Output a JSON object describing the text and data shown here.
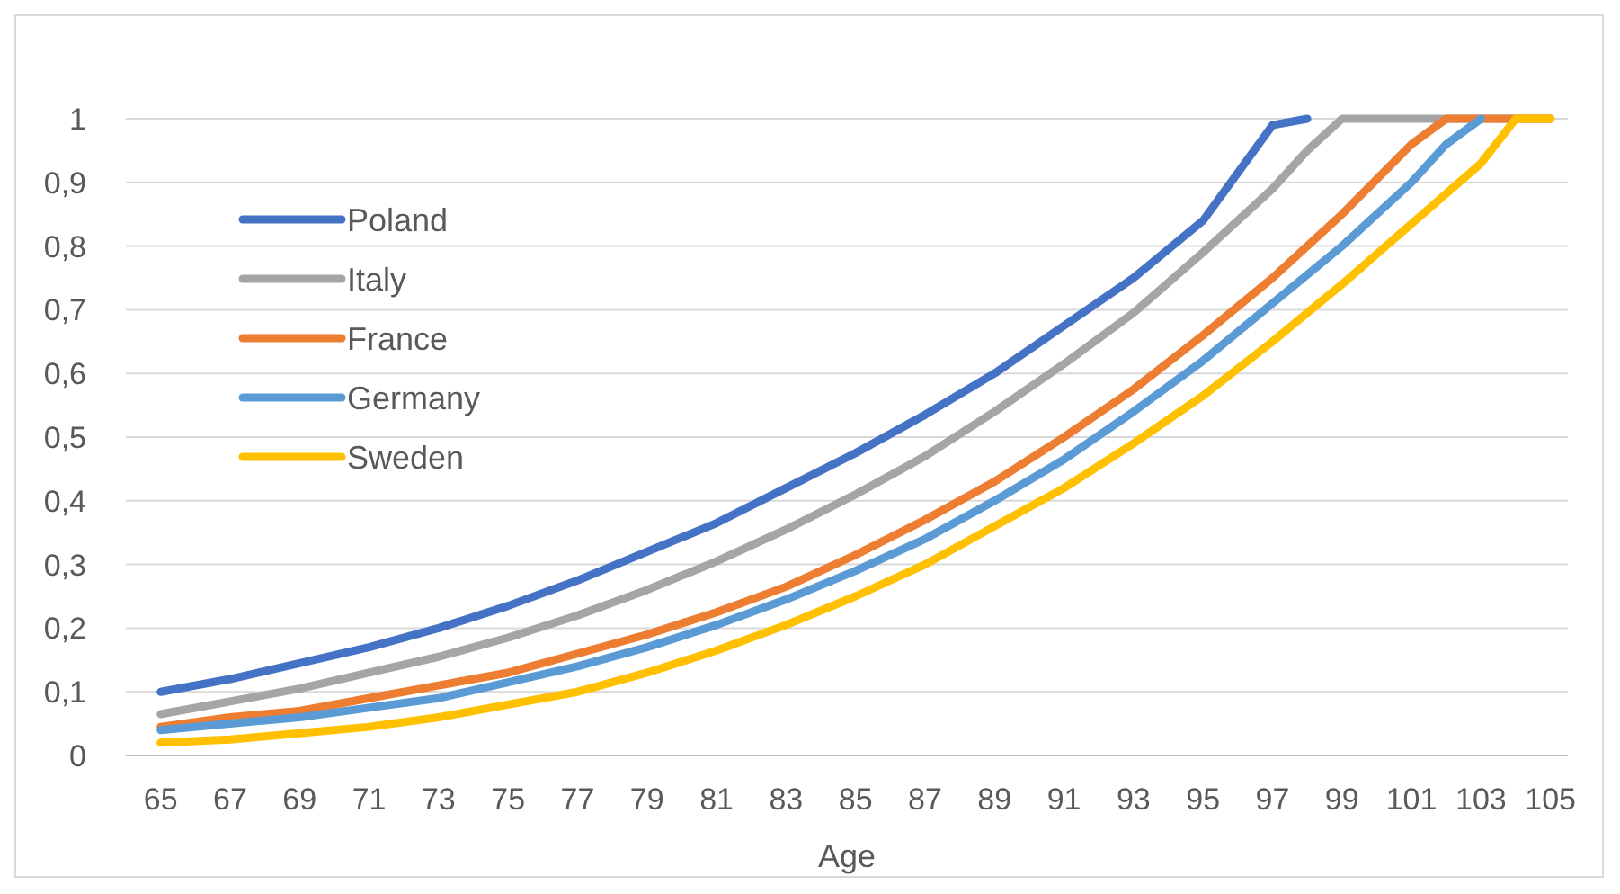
{
  "chart_data": {
    "type": "line",
    "xlabel": "Age",
    "xlim": [
      64,
      105.5
    ],
    "xticks": [
      65,
      67,
      69,
      71,
      73,
      75,
      77,
      79,
      81,
      83,
      85,
      87,
      89,
      91,
      93,
      95,
      97,
      99,
      101,
      103,
      105
    ],
    "ylim": [
      0,
      1
    ],
    "yticks": [
      {
        "value": 0,
        "label": "0"
      },
      {
        "value": 0.1,
        "label": "0,1"
      },
      {
        "value": 0.2,
        "label": "0,2"
      },
      {
        "value": 0.3,
        "label": "0,3"
      },
      {
        "value": 0.4,
        "label": "0,4"
      },
      {
        "value": 0.5,
        "label": "0,5"
      },
      {
        "value": 0.6,
        "label": "0,6"
      },
      {
        "value": 0.7,
        "label": "0,7"
      },
      {
        "value": 0.8,
        "label": "0,8"
      },
      {
        "value": 0.9,
        "label": "0,9"
      },
      {
        "value": 1,
        "label": "1"
      }
    ],
    "grid": "y",
    "legend": "top left",
    "marker": "none",
    "line_style": "solid",
    "series": [
      {
        "name": "Poland",
        "color": "#4472c4",
        "x": [
          65,
          67,
          69,
          71,
          73,
          75,
          77,
          79,
          81,
          83,
          85,
          87,
          89,
          91,
          93,
          95,
          97,
          98
        ],
        "values": [
          0.1,
          0.12,
          0.145,
          0.17,
          0.2,
          0.235,
          0.275,
          0.32,
          0.365,
          0.42,
          0.475,
          0.535,
          0.6,
          0.675,
          0.75,
          0.84,
          0.99,
          1
        ]
      },
      {
        "name": "Italy",
        "color": "#a5a5a5",
        "x": [
          65,
          67,
          69,
          71,
          73,
          75,
          77,
          79,
          81,
          83,
          85,
          87,
          89,
          91,
          93,
          95,
          97,
          98,
          99,
          105
        ],
        "values": [
          0.065,
          0.085,
          0.105,
          0.13,
          0.155,
          0.185,
          0.22,
          0.26,
          0.305,
          0.355,
          0.41,
          0.47,
          0.54,
          0.615,
          0.695,
          0.79,
          0.89,
          0.95,
          1,
          1
        ]
      },
      {
        "name": "France",
        "color": "#ed7d31",
        "x": [
          65,
          67,
          69,
          71,
          73,
          75,
          77,
          79,
          81,
          83,
          85,
          87,
          89,
          91,
          93,
          95,
          97,
          99,
          101,
          102,
          105
        ],
        "values": [
          0.045,
          0.06,
          0.07,
          0.09,
          0.11,
          0.13,
          0.16,
          0.19,
          0.225,
          0.265,
          0.315,
          0.37,
          0.43,
          0.5,
          0.575,
          0.66,
          0.75,
          0.85,
          0.96,
          1,
          1
        ]
      },
      {
        "name": "Germany",
        "color": "#5b9bd5",
        "x": [
          65,
          67,
          69,
          71,
          73,
          75,
          77,
          79,
          81,
          83,
          85,
          87,
          89,
          91,
          93,
          95,
          97,
          99,
          101,
          102,
          103
        ],
        "values": [
          0.04,
          0.05,
          0.06,
          0.075,
          0.09,
          0.115,
          0.14,
          0.17,
          0.205,
          0.245,
          0.29,
          0.34,
          0.4,
          0.465,
          0.54,
          0.62,
          0.71,
          0.8,
          0.9,
          0.96,
          1
        ]
      },
      {
        "name": "Sweden",
        "color": "#ffc000",
        "x": [
          65,
          67,
          69,
          71,
          73,
          75,
          77,
          79,
          81,
          83,
          85,
          87,
          89,
          91,
          93,
          95,
          97,
          99,
          101,
          103,
          104,
          105
        ],
        "values": [
          0.02,
          0.025,
          0.035,
          0.045,
          0.06,
          0.08,
          0.1,
          0.13,
          0.165,
          0.205,
          0.25,
          0.3,
          0.36,
          0.42,
          0.49,
          0.565,
          0.65,
          0.74,
          0.835,
          0.93,
          1,
          1
        ]
      }
    ]
  }
}
